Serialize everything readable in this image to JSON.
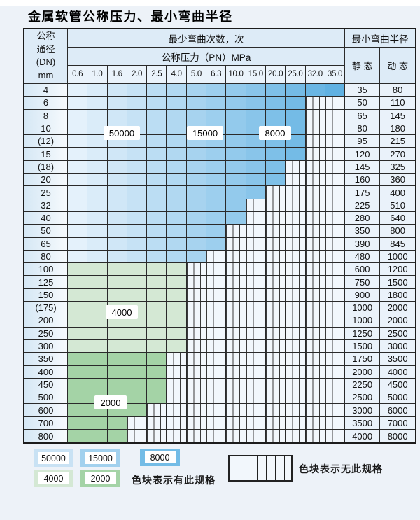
{
  "title": "金属软管公称压力、最小弯曲半径",
  "colors": {
    "page_bg": "#edf2f8",
    "table_border": "#1c1c1c",
    "header_bg": "#ddebf7",
    "blue_start": "#e4f1fb",
    "blue_end": "#60b1e2",
    "green_light": "#d4e8d4",
    "green_dark": "#a4d3a6",
    "hatch_bg": "#f2f7fc",
    "hatch_line": "#3a3a3a"
  },
  "table": {
    "header": {
      "dn_lines": [
        "公称",
        "通径",
        "(DN)",
        "mm"
      ],
      "bend_cycles": "最少弯曲次数，次",
      "pressure": "公称压力（PN）MPa",
      "radius": "最小弯曲半径",
      "static_label": "静 态",
      "dynamic_label": "动 态",
      "pressures": [
        "0.6",
        "1.0",
        "1.6",
        "2.0",
        "2.5",
        "4.0",
        "5.0",
        "6.3",
        "10.0",
        "15.0",
        "20.0",
        "25.0",
        "32.0",
        "35.0"
      ]
    },
    "rows": [
      {
        "dn": "4",
        "zone": "blue",
        "colored": 14,
        "static": "35",
        "dynamic": "80"
      },
      {
        "dn": "6",
        "zone": "blue",
        "colored": 12,
        "static": "50",
        "dynamic": "110"
      },
      {
        "dn": "8",
        "zone": "blue",
        "colored": 12,
        "static": "65",
        "dynamic": "145"
      },
      {
        "dn": "10",
        "zone": "blue",
        "colored": 12,
        "static": "80",
        "dynamic": "180"
      },
      {
        "dn": "(12)",
        "zone": "blue",
        "colored": 12,
        "static": "95",
        "dynamic": "215"
      },
      {
        "dn": "15",
        "zone": "blue",
        "colored": 12,
        "static": "120",
        "dynamic": "270"
      },
      {
        "dn": "(18)",
        "zone": "blue",
        "colored": 11,
        "static": "145",
        "dynamic": "325"
      },
      {
        "dn": "20",
        "zone": "blue",
        "colored": 11,
        "static": "160",
        "dynamic": "360"
      },
      {
        "dn": "25",
        "zone": "blue",
        "colored": 10,
        "static": "175",
        "dynamic": "400"
      },
      {
        "dn": "32",
        "zone": "blue",
        "colored": 9,
        "static": "225",
        "dynamic": "510"
      },
      {
        "dn": "40",
        "zone": "blue",
        "colored": 9,
        "static": "280",
        "dynamic": "640"
      },
      {
        "dn": "50",
        "zone": "blue",
        "colored": 8,
        "static": "350",
        "dynamic": "800"
      },
      {
        "dn": "65",
        "zone": "blue",
        "colored": 8,
        "static": "390",
        "dynamic": "845"
      },
      {
        "dn": "80",
        "zone": "blue",
        "colored": 7,
        "static": "480",
        "dynamic": "1000"
      },
      {
        "dn": "100",
        "zone": "green_light",
        "colored": 6,
        "static": "600",
        "dynamic": "1200"
      },
      {
        "dn": "125",
        "zone": "green_light",
        "colored": 6,
        "static": "750",
        "dynamic": "1500"
      },
      {
        "dn": "150",
        "zone": "green_light",
        "colored": 6,
        "static": "900",
        "dynamic": "1800"
      },
      {
        "dn": "(175)",
        "zone": "green_light",
        "colored": 6,
        "static": "1000",
        "dynamic": "2000"
      },
      {
        "dn": "200",
        "zone": "green_light",
        "colored": 6,
        "static": "1000",
        "dynamic": "2000"
      },
      {
        "dn": "250",
        "zone": "green_light",
        "colored": 6,
        "static": "1250",
        "dynamic": "2500"
      },
      {
        "dn": "300",
        "zone": "green_light",
        "colored": 6,
        "static": "1500",
        "dynamic": "3000"
      },
      {
        "dn": "350",
        "zone": "green_dark",
        "colored": 5,
        "static": "1750",
        "dynamic": "3500"
      },
      {
        "dn": "400",
        "zone": "green_dark",
        "colored": 5,
        "static": "2000",
        "dynamic": "4000"
      },
      {
        "dn": "450",
        "zone": "green_dark",
        "colored": 5,
        "static": "2250",
        "dynamic": "4500"
      },
      {
        "dn": "500",
        "zone": "green_dark",
        "colored": 5,
        "static": "2500",
        "dynamic": "5000"
      },
      {
        "dn": "600",
        "zone": "green_dark",
        "colored": 4,
        "static": "3000",
        "dynamic": "6000"
      },
      {
        "dn": "700",
        "zone": "green_dark",
        "colored": 3,
        "static": "3500",
        "dynamic": "7000"
      },
      {
        "dn": "800",
        "zone": "green_dark",
        "colored": 3,
        "static": "4000",
        "dynamic": "8000"
      }
    ],
    "overlays": [
      {
        "label": "50000"
      },
      {
        "label": "15000"
      },
      {
        "label": "8000"
      },
      {
        "label": "4000"
      },
      {
        "label": "2000"
      }
    ]
  },
  "legend": {
    "items": [
      {
        "label": "50000",
        "color": "#c9e2f4"
      },
      {
        "label": "15000",
        "color": "#a2d1ee"
      },
      {
        "label": "8000",
        "color": "#74bce6"
      },
      {
        "label": "4000",
        "color": "#d4e8d4"
      },
      {
        "label": "2000",
        "color": "#a4d3a6"
      }
    ],
    "has_spec": "色块表示有此规格",
    "no_spec": "色块表示无此规格"
  }
}
